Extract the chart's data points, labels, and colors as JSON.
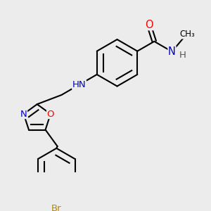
{
  "bg_color": "#ececec",
  "bond_color": "#000000",
  "bond_width": 1.5,
  "atom_colors": {
    "O": "#ff0000",
    "N": "#0000cd",
    "Br": "#b8860b",
    "C": "#000000",
    "H": "#555555"
  },
  "font_size": 9.5
}
